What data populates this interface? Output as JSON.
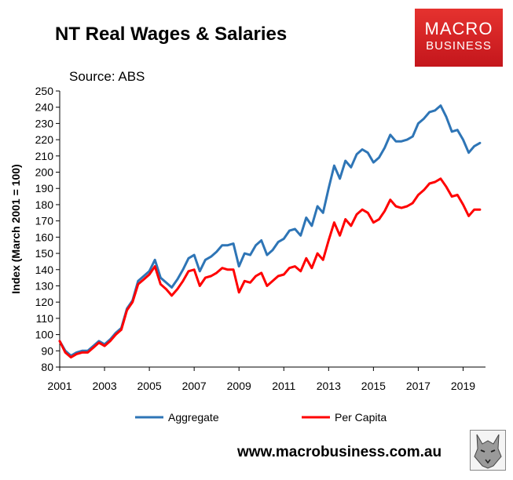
{
  "header": {
    "title": "NT Real Wages & Salaries",
    "source": "Source: ABS",
    "logo_line1": "MACRO",
    "logo_line2": "BUSINESS",
    "url": "www.macrobusiness.com.au"
  },
  "colors": {
    "aggregate": "#2e75b6",
    "per_capita": "#ff0000",
    "logo_bg": "#d7191f"
  },
  "chart_data": {
    "type": "line",
    "title": "NT Real Wages & Salaries",
    "ylabel": "Index (March 2001 = 100)",
    "xlabel": "",
    "ylim": [
      80,
      250
    ],
    "yticks": [
      80,
      90,
      100,
      110,
      120,
      130,
      140,
      150,
      160,
      170,
      180,
      190,
      200,
      210,
      220,
      230,
      240,
      250
    ],
    "xlim": [
      2001,
      2020
    ],
    "xticks": [
      2001,
      2003,
      2005,
      2007,
      2009,
      2011,
      2013,
      2015,
      2017,
      2019
    ],
    "grid": false,
    "legend": "bottom",
    "x": [
      2001.0,
      2001.25,
      2001.5,
      2001.75,
      2002.0,
      2002.25,
      2002.5,
      2002.75,
      2003.0,
      2003.25,
      2003.5,
      2003.75,
      2004.0,
      2004.25,
      2004.5,
      2004.75,
      2005.0,
      2005.25,
      2005.5,
      2005.75,
      2006.0,
      2006.25,
      2006.5,
      2006.75,
      2007.0,
      2007.25,
      2007.5,
      2007.75,
      2008.0,
      2008.25,
      2008.5,
      2008.75,
      2009.0,
      2009.25,
      2009.5,
      2009.75,
      2010.0,
      2010.25,
      2010.5,
      2010.75,
      2011.0,
      2011.25,
      2011.5,
      2011.75,
      2012.0,
      2012.25,
      2012.5,
      2012.75,
      2013.0,
      2013.25,
      2013.5,
      2013.75,
      2014.0,
      2014.25,
      2014.5,
      2014.75,
      2015.0,
      2015.25,
      2015.5,
      2015.75,
      2016.0,
      2016.25,
      2016.5,
      2016.75,
      2017.0,
      2017.25,
      2017.5,
      2017.75,
      2018.0,
      2018.25,
      2018.5,
      2018.75,
      2019.0,
      2019.25,
      2019.5,
      2019.75
    ],
    "series": [
      {
        "name": "Aggregate",
        "values": [
          96,
          90,
          87,
          89,
          90,
          90,
          93,
          96,
          94,
          97,
          101,
          104,
          116,
          121,
          133,
          136,
          139,
          146,
          135,
          132,
          129,
          134,
          140,
          147,
          149,
          139,
          146,
          148,
          151,
          155,
          155,
          156,
          142,
          150,
          149,
          155,
          158,
          149,
          152,
          157,
          159,
          164,
          165,
          161,
          172,
          167,
          179,
          175,
          190,
          204,
          196,
          207,
          203,
          211,
          214,
          212,
          206,
          209,
          215,
          223,
          219,
          219,
          220,
          222,
          230,
          233,
          237,
          238,
          241,
          234,
          225,
          226,
          220,
          212,
          216,
          218
        ]
      },
      {
        "name": "Per Capita",
        "values": [
          96,
          89,
          86,
          88,
          89,
          89,
          92,
          95,
          93,
          96,
          100,
          103,
          115,
          120,
          131,
          134,
          137,
          142,
          131,
          128,
          124,
          128,
          133,
          139,
          140,
          130,
          135,
          136,
          138,
          141,
          140,
          140,
          126,
          133,
          132,
          136,
          138,
          130,
          133,
          136,
          137,
          141,
          142,
          139,
          147,
          141,
          150,
          146,
          158,
          169,
          161,
          171,
          167,
          174,
          177,
          175,
          169,
          171,
          176,
          183,
          179,
          178,
          179,
          181,
          186,
          189,
          193,
          194,
          196,
          191,
          185,
          186,
          180,
          173,
          177,
          177
        ]
      }
    ]
  }
}
